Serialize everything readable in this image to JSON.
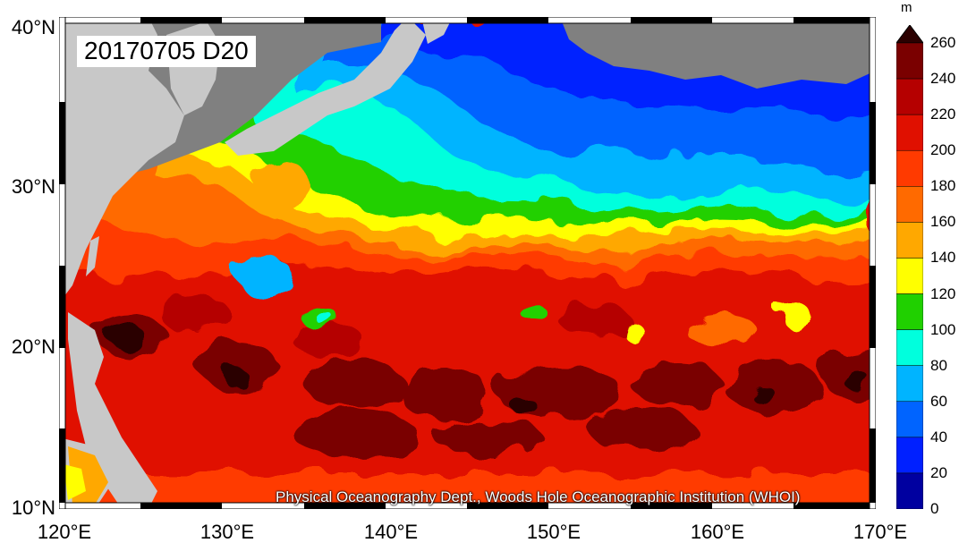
{
  "title": "20170705 D20",
  "credit": "Physical Oceanography Dept., Woods Hole Oceanographic Institution (WHOI)",
  "lat_labels": [
    "40°N",
    "30°N",
    "20°N",
    "10°N"
  ],
  "lon_labels": [
    "120°E",
    "130°E",
    "140°E",
    "150°E",
    "160°E",
    "170°E"
  ],
  "colorbar": {
    "unit": "m",
    "ticks": [
      "260",
      "240",
      "220",
      "200",
      "180",
      "160",
      "140",
      "120",
      "100",
      "80",
      "60",
      "40",
      "20",
      "0"
    ],
    "colors": [
      "#2b0000",
      "#7a0000",
      "#b50000",
      "#e01000",
      "#ff3a00",
      "#ff6a00",
      "#ffa800",
      "#ffff00",
      "#20d000",
      "#00ffdd",
      "#00b4ff",
      "#0064ff",
      "#0020ff",
      "#0000a0"
    ]
  },
  "colors": {
    "land": "#c8c8c8",
    "masked": "#808080"
  }
}
